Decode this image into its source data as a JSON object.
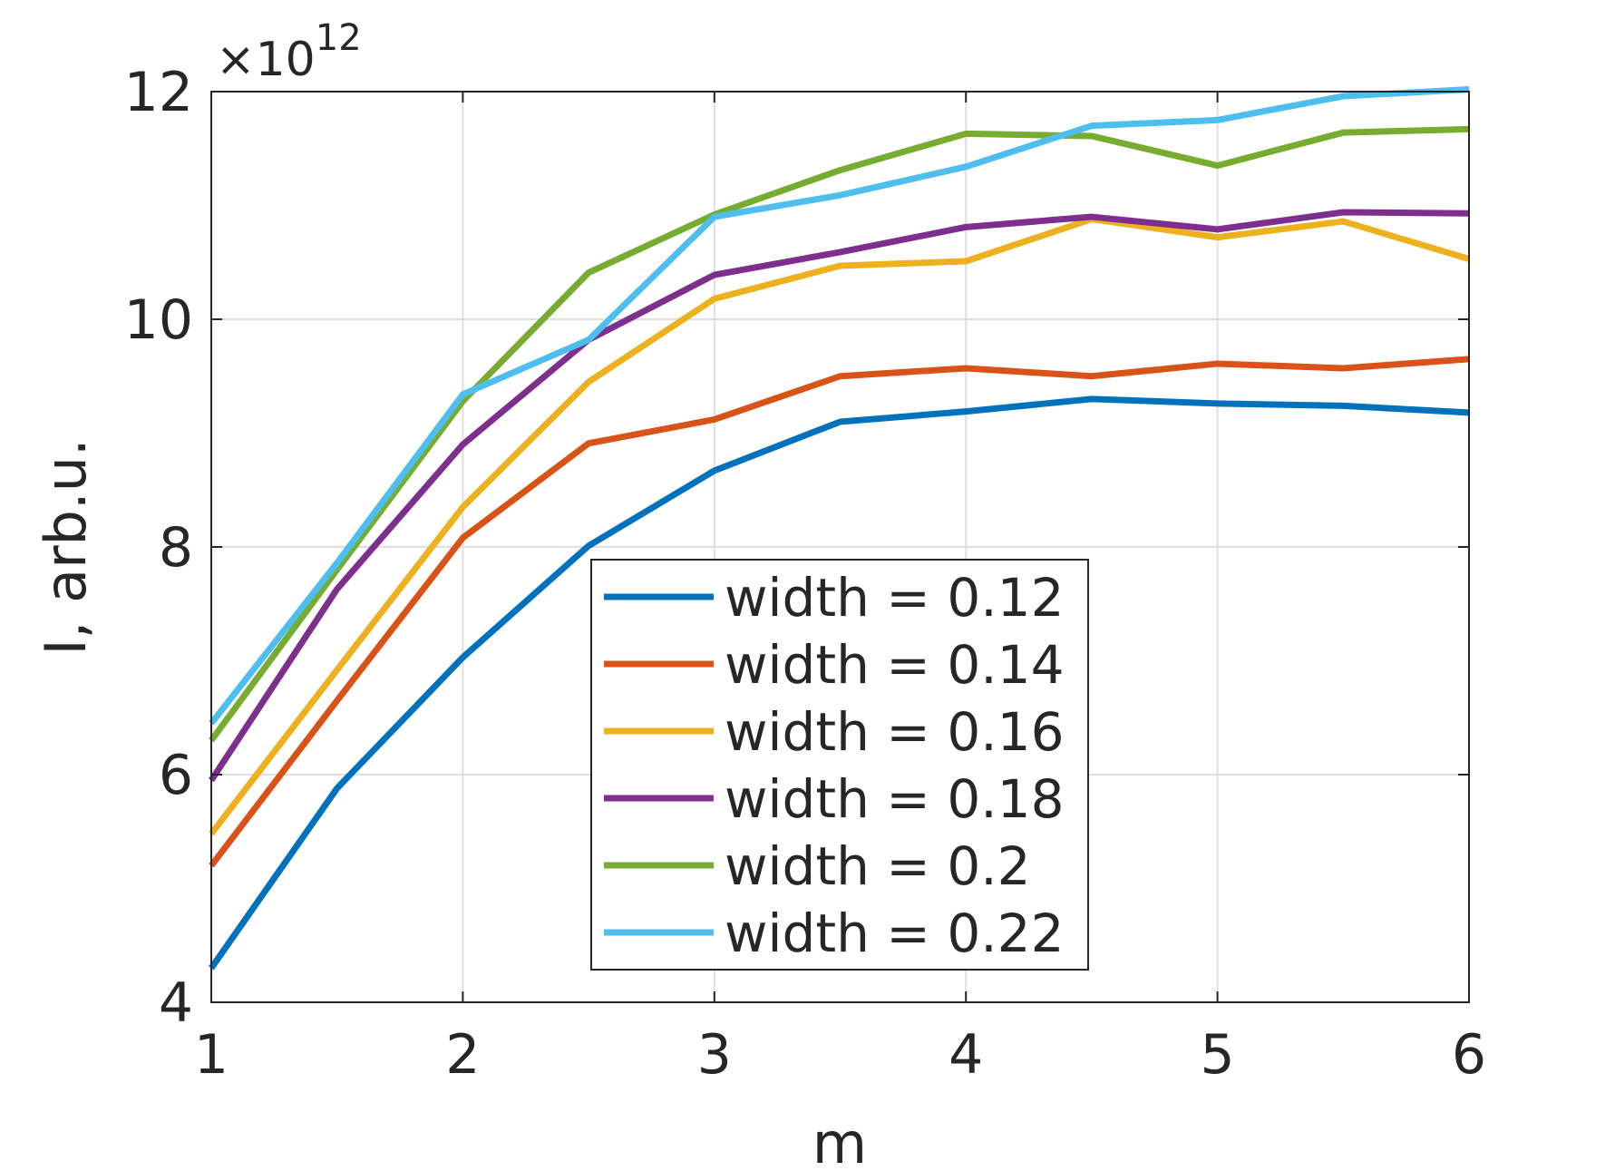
{
  "chart_data": {
    "type": "line",
    "xlabel": "m",
    "ylabel": "I, arb.u.",
    "y_exponent_label": "×10",
    "y_exponent_power": "12",
    "xlim": [
      1,
      6
    ],
    "ylim": [
      4,
      12
    ],
    "x_ticks": [
      "1",
      "2",
      "3",
      "4",
      "5",
      "6"
    ],
    "y_ticks": [
      "4",
      "6",
      "8",
      "10",
      "12"
    ],
    "grid": true,
    "legend_position": "bottom-center",
    "x": [
      1,
      1.5,
      2,
      2.5,
      3,
      3.5,
      4,
      4.5,
      5,
      5.5,
      6
    ],
    "series": [
      {
        "name": "width = 0.12",
        "color": "#0072BD",
        "values": [
          4.3,
          5.88,
          7.03,
          8.01,
          8.67,
          9.1,
          9.19,
          9.3,
          9.26,
          9.24,
          9.18
        ]
      },
      {
        "name": "width = 0.14",
        "color": "#D95319",
        "values": [
          5.2,
          6.65,
          8.08,
          8.91,
          9.12,
          9.5,
          9.57,
          9.5,
          9.61,
          9.57,
          9.65
        ]
      },
      {
        "name": "width = 0.16",
        "color": "#EDB120",
        "values": [
          5.48,
          6.92,
          8.35,
          9.45,
          10.18,
          10.47,
          10.51,
          10.88,
          10.72,
          10.86,
          10.53
        ]
      },
      {
        "name": "width = 0.18",
        "color": "#7E2F8E",
        "values": [
          5.95,
          7.63,
          8.9,
          9.82,
          10.39,
          10.59,
          10.81,
          10.9,
          10.79,
          10.94,
          10.93
        ]
      },
      {
        "name": "width = 0.2",
        "color": "#77AC30",
        "values": [
          6.3,
          7.8,
          9.28,
          10.41,
          10.92,
          11.31,
          11.63,
          11.61,
          11.35,
          11.64,
          11.67
        ]
      },
      {
        "name": "width = 0.22",
        "color": "#4DBEEE",
        "values": [
          6.45,
          7.86,
          9.34,
          9.82,
          10.9,
          11.09,
          11.34,
          11.7,
          11.75,
          11.96,
          12.02
        ]
      }
    ]
  }
}
